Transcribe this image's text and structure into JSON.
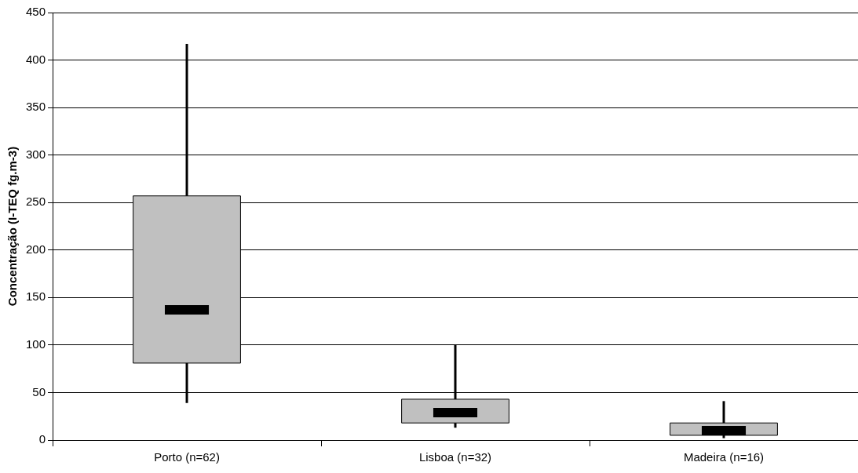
{
  "chart_data": {
    "type": "box",
    "ylabel": "Concentração (I-TEQ fg.m-3)",
    "categories": [
      "Porto (n=62)",
      "Lisboa (n=32)",
      "Madeira (n=16)"
    ],
    "color": "#c0c0c0",
    "boxes": [
      {
        "low": 39,
        "q1": 81,
        "median": 137,
        "q3": 257,
        "high": 417
      },
      {
        "low": 13,
        "q1": 18,
        "median": 29,
        "q3": 43,
        "high": 100
      },
      {
        "low": 2,
        "q1": 5,
        "median": 10,
        "q3": 18,
        "high": 41
      }
    ],
    "ylim": [
      0,
      450
    ],
    "yticks": [
      0,
      50,
      100,
      150,
      200,
      250,
      300,
      350,
      400,
      450
    ],
    "grid": "y",
    "legend": false
  }
}
